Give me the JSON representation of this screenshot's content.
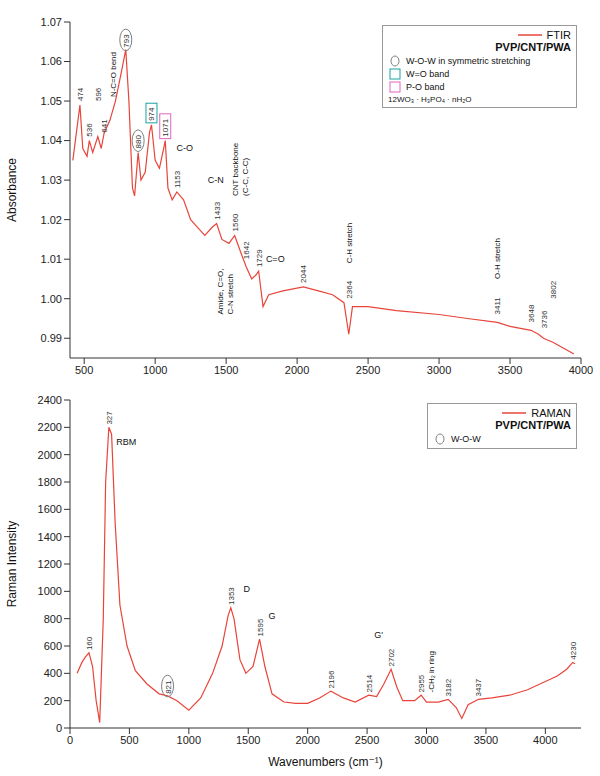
{
  "chart_data": [
    {
      "type": "line",
      "title": "PVP/CNT/PWA",
      "ylabel": "Absorbance",
      "xlim": [
        400,
        4000
      ],
      "xticks": [
        500,
        1000,
        1500,
        2000,
        2500,
        3000,
        3500,
        4000
      ],
      "ylim": [
        0.985,
        1.07
      ],
      "yticks": [
        0.99,
        {
          "value": 1,
          "label": "1.00"
        },
        1.01,
        1.02,
        1.03,
        1.04,
        1.05,
        1.06,
        1.07
      ],
      "legend": "upper right",
      "series": [
        {
          "name": "FTIR",
          "color": "#e8443a",
          "x": [
            420,
            470,
            490,
            520,
            536,
            560,
            596,
            620,
            641,
            680,
            720,
            760,
            793,
            815,
            840,
            855,
            880,
            900,
            930,
            960,
            974,
            1000,
            1030,
            1060,
            1071,
            1090,
            1120,
            1153,
            1200,
            1250,
            1300,
            1350,
            1400,
            1433,
            1470,
            1520,
            1560,
            1600,
            1642,
            1680,
            1710,
            1729,
            1760,
            1800,
            1900,
            2044,
            2150,
            2250,
            2330,
            2364,
            2390,
            2500,
            2700,
            3000,
            3200,
            3411,
            3500,
            3648,
            3700,
            3736,
            3802,
            3900,
            3950
          ],
          "values": [
            1.035,
            1.049,
            1.038,
            1.036,
            1.04,
            1.037,
            1.041,
            1.038,
            1.042,
            1.045,
            1.05,
            1.057,
            1.063,
            1.05,
            1.028,
            1.026,
            1.037,
            1.03,
            1.032,
            1.042,
            1.044,
            1.035,
            1.033,
            1.038,
            1.04,
            1.028,
            1.025,
            1.027,
            1.025,
            1.02,
            1.018,
            1.016,
            1.018,
            1.019,
            1.015,
            1.014,
            1.016,
            1.012,
            1.008,
            1.005,
            1.006,
            1.007,
            0.998,
            1.001,
            1.002,
            1.003,
            1.002,
            1.001,
            0.999,
            0.991,
            0.998,
            0.998,
            0.997,
            0.996,
            0.995,
            0.994,
            0.993,
            0.992,
            0.991,
            0.99,
            0.989,
            0.987,
            0.986
          ]
        }
      ],
      "peak_labels": [
        {
          "x": 474,
          "y": 1.05
        },
        {
          "x": 536,
          "y": 1.041
        },
        {
          "x": 596,
          "y": 1.05
        },
        {
          "x": 641,
          "y": 1.042
        },
        {
          "x": 793,
          "y": 1.0635,
          "marker": "ellipse",
          "color": "#7f7f7f"
        },
        {
          "x": 880,
          "y": 1.038,
          "marker": "ellipse",
          "color": "#7f7f7f"
        },
        {
          "x": 974,
          "y": 1.045,
          "marker": "square",
          "color": "#1aa3a3"
        },
        {
          "x": 1071,
          "y": 1.041,
          "marker": "square",
          "color": "#e064c0"
        },
        {
          "x": 1153,
          "y": 1.028
        },
        {
          "x": 1433,
          "y": 1.02
        },
        {
          "x": 1560,
          "y": 1.017
        },
        {
          "x": 1642,
          "y": 1.01
        },
        {
          "x": 1729,
          "y": 1.008
        },
        {
          "x": 2044,
          "y": 1.004
        },
        {
          "x": 2364,
          "y": 1.0
        },
        {
          "x": 3411,
          "y": 0.996
        },
        {
          "x": 3648,
          "y": 0.994
        },
        {
          "x": 3736,
          "y": 0.9925
        },
        {
          "x": 3802,
          "y": 1.0
        }
      ],
      "annotations": [
        {
          "text": "N-C=O bend",
          "x": 700,
          "y": 1.051
        },
        {
          "text": "C-O",
          "x": 1150,
          "y": 1.038
        },
        {
          "text": "C-N",
          "x": 1370,
          "y": 1.03
        },
        {
          "text": "CNT backbone (C-C, C-C)",
          "x": 1560,
          "y": 1.026
        },
        {
          "text": "Amide, C=O, C-N stretch",
          "x": 1460,
          "y": 0.996
        },
        {
          "text": "C=O",
          "x": 1780,
          "y": 1.01
        },
        {
          "text": "C-H stretch",
          "x": 2364,
          "y": 1.009
        },
        {
          "text": "O-H stretch",
          "x": 3411,
          "y": 1.005
        }
      ],
      "key": [
        {
          "text": "W-O-W in symmetric stretching",
          "marker": "ellipse",
          "color": "#7f7f7f"
        },
        {
          "text": "W=O band",
          "marker": "square",
          "color": "#1aa3a3"
        },
        {
          "text": "P-O band",
          "marker": "square",
          "color": "#e064c0"
        }
      ],
      "formula": "12WO₃ · H₃PO₄ · nH₂O"
    },
    {
      "type": "line",
      "title": "PVP/CNT/PWA",
      "ylabel": "Raman Intensity",
      "xlabel": "Wavenumbers (cm⁻¹)",
      "xlim": [
        0,
        4300
      ],
      "xticks": [
        0,
        500,
        1000,
        1500,
        2000,
        2500,
        3000,
        3500,
        4000
      ],
      "ylim": [
        0,
        2400
      ],
      "yticks": [
        0,
        200,
        400,
        600,
        800,
        1000,
        1200,
        1400,
        1600,
        1800,
        2000,
        2200,
        2400
      ],
      "legend": "upper right",
      "series": [
        {
          "name": "RAMAN",
          "color": "#e8443a",
          "x": [
            60,
            100,
            130,
            160,
            190,
            220,
            250,
            280,
            300,
            327,
            350,
            380,
            420,
            480,
            550,
            650,
            750,
            821,
            900,
            1000,
            1100,
            1200,
            1280,
            1330,
            1353,
            1380,
            1430,
            1480,
            1540,
            1595,
            1640,
            1700,
            1800,
            1900,
            2000,
            2100,
            2196,
            2300,
            2400,
            2514,
            2580,
            2640,
            2702,
            2750,
            2800,
            2900,
            2955,
            3000,
            3100,
            3182,
            3250,
            3297,
            3350,
            3437,
            3550,
            3700,
            3850,
            4000,
            4100,
            4180,
            4230,
            4250
          ],
          "values": [
            400,
            480,
            520,
            550,
            450,
            200,
            40,
            800,
            1800,
            2200,
            2150,
            1500,
            900,
            600,
            420,
            320,
            250,
            235,
            200,
            130,
            220,
            400,
            600,
            820,
            880,
            800,
            500,
            400,
            450,
            650,
            450,
            250,
            190,
            180,
            180,
            220,
            270,
            220,
            190,
            240,
            230,
            320,
            430,
            300,
            200,
            200,
            240,
            190,
            190,
            210,
            150,
            70,
            170,
            210,
            220,
            240,
            280,
            340,
            380,
            430,
            480,
            470
          ]
        }
      ],
      "peak_labels": [
        {
          "x": 160,
          "y": 570
        },
        {
          "x": 327,
          "y": 2220
        },
        {
          "x": 821,
          "y": 250,
          "marker": "ellipse",
          "color": "#7f7f7f"
        },
        {
          "x": 1353,
          "y": 900
        },
        {
          "x": 1595,
          "y": 670
        },
        {
          "x": 2196,
          "y": 290
        },
        {
          "x": 2514,
          "y": 260
        },
        {
          "x": 2702,
          "y": 450
        },
        {
          "x": 2955,
          "y": 260
        },
        {
          "x": 3182,
          "y": 230
        },
        {
          "x": 3437,
          "y": 230
        },
        {
          "x": 4230,
          "y": 500
        }
      ],
      "annotations": [
        {
          "text": "RBM",
          "x": 390,
          "y": 2090
        },
        {
          "text": "D",
          "x": 1460,
          "y": 1020
        },
        {
          "text": "G",
          "x": 1670,
          "y": 820
        },
        {
          "text": "G'",
          "x": 2560,
          "y": 680
        },
        {
          "text": "-CH₂ in ring",
          "x": 3040,
          "y": 260
        }
      ],
      "key": [
        {
          "text": "W-O-W",
          "marker": "ellipse",
          "color": "#7f7f7f"
        }
      ]
    }
  ]
}
